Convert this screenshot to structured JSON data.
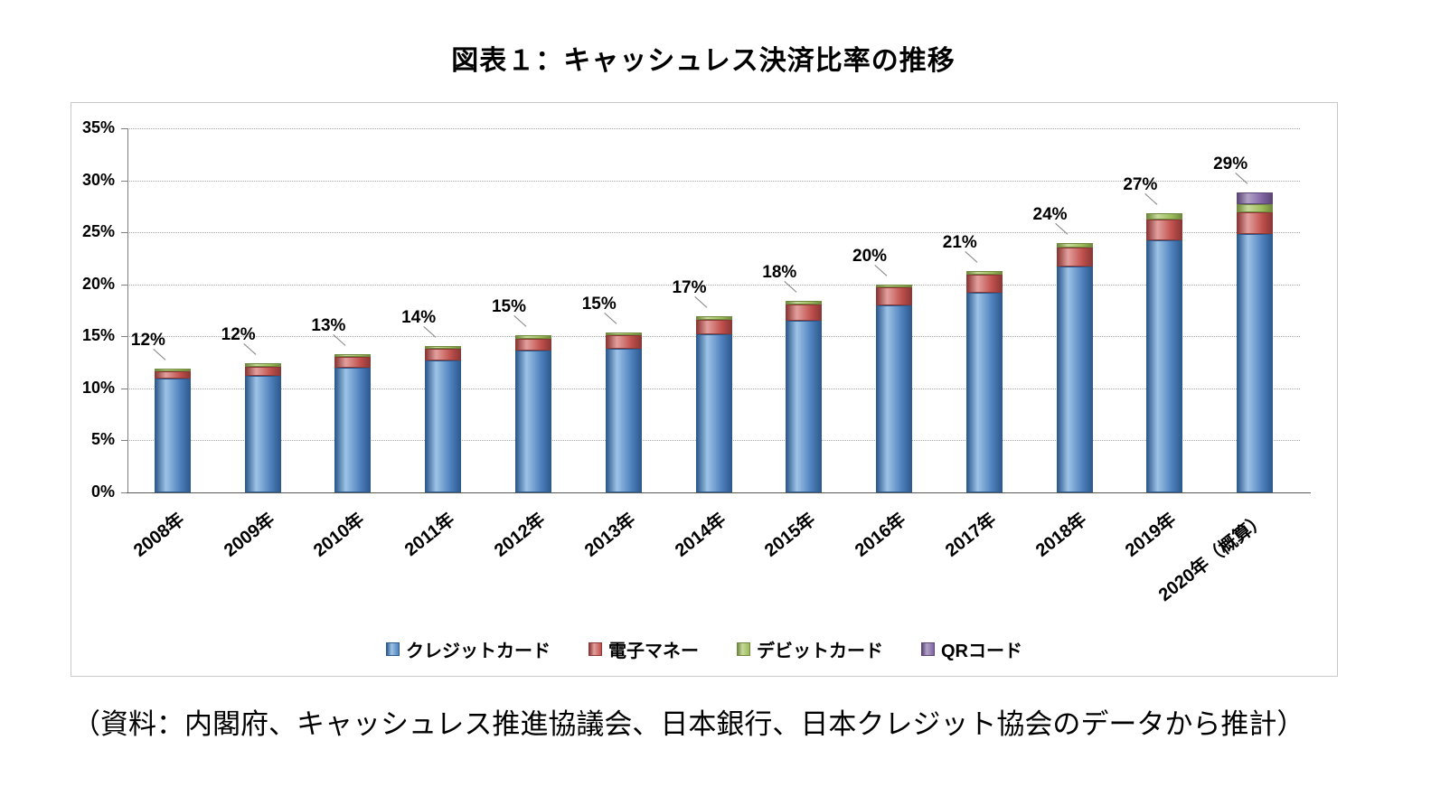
{
  "title": "図表１：キャッシュレス決済比率の推移",
  "caption": "（資料：内閣府、キャッシュレス推進協議会、日本銀行、日本クレジット協会のデータから推計）",
  "chart_data": {
    "type": "bar",
    "subtype": "stacked",
    "title": "図表１：キャッシュレス決済比率の推移",
    "categories": [
      "2008年",
      "2009年",
      "2010年",
      "2011年",
      "2012年",
      "2013年",
      "2014年",
      "2015年",
      "2016年",
      "2017年",
      "2018年",
      "2019年",
      "2020年（概算）"
    ],
    "series": [
      {
        "name": "クレジットカード",
        "color": "#4F81BD",
        "light": "#9DC3E6",
        "dark": "#2E5B8F",
        "values": [
          10.9,
          11.2,
          12.0,
          12.7,
          13.6,
          13.8,
          15.2,
          16.5,
          18.0,
          19.2,
          21.7,
          24.2,
          24.8
        ]
      },
      {
        "name": "電子マネー",
        "color": "#C0504D",
        "light": "#E3A09E",
        "dark": "#8C3836",
        "values": [
          0.7,
          0.9,
          1.0,
          1.1,
          1.2,
          1.3,
          1.4,
          1.6,
          1.7,
          1.7,
          1.8,
          2.0,
          2.1
        ]
      },
      {
        "name": "デビットカード",
        "color": "#9BBB59",
        "light": "#C6DA9A",
        "dark": "#71893F",
        "values": [
          0.3,
          0.3,
          0.3,
          0.3,
          0.3,
          0.3,
          0.3,
          0.3,
          0.3,
          0.4,
          0.5,
          0.6,
          0.8
        ]
      },
      {
        "name": "QRコード",
        "color": "#8064A2",
        "light": "#B3A2C7",
        "dark": "#5C4776",
        "values": [
          0,
          0,
          0,
          0,
          0,
          0,
          0,
          0,
          0,
          0,
          0,
          0,
          1.1
        ]
      }
    ],
    "total_labels": [
      "12%",
      "12%",
      "13%",
      "14%",
      "15%",
      "15%",
      "17%",
      "18%",
      "20%",
      "21%",
      "24%",
      "27%",
      "29%"
    ],
    "ylabel_ticks": [
      "0%",
      "5%",
      "10%",
      "15%",
      "20%",
      "25%",
      "30%",
      "35%"
    ],
    "ylim": [
      0,
      35
    ],
    "y_tick_step": 5,
    "grid": "dotted horizontal gridlines every 5%",
    "legend_position": "bottom",
    "xlabel": "",
    "ylabel": ""
  }
}
